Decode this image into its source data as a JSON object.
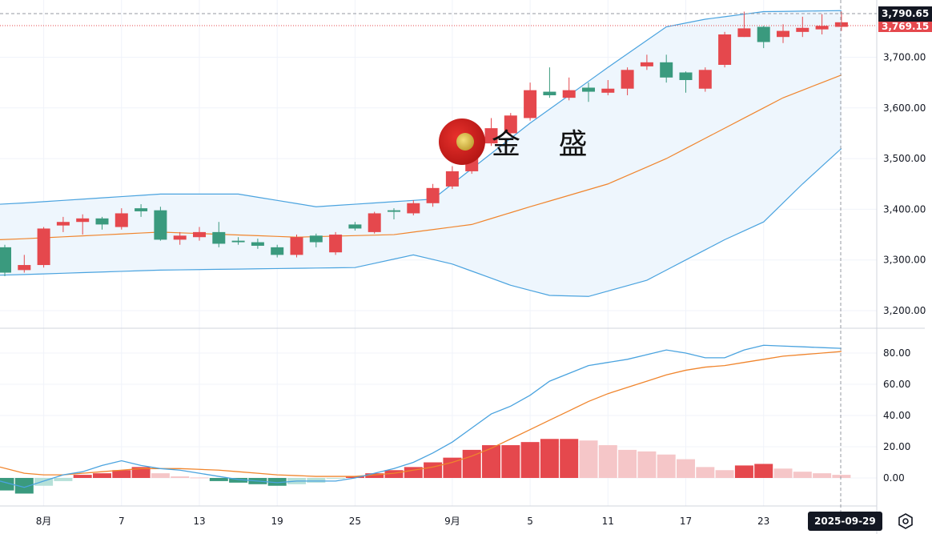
{
  "watermark": "金 盛",
  "crosshair": {
    "price_label": "3,790.65",
    "last_price_label": "3,769.15",
    "date_label": "2025-09-29"
  },
  "colors": {
    "up": "#e5484d",
    "down": "#3a9a7e",
    "up_light": "#f5c6c8",
    "down_light": "#b5e0d8",
    "band_fill": "#eef6fd",
    "upper": "#4aa3df",
    "mid": "#f0852d",
    "dif": "#4aa3df",
    "dea": "#f0852d"
  },
  "chart_data": [
    {
      "type": "candlestick",
      "title": "",
      "price_ticks": [
        3200,
        3300,
        3400,
        3500,
        3600,
        3700
      ],
      "price_tick_labels": [
        "3,200.00",
        "3,300.00",
        "3,400.00",
        "3,500.00",
        "3,600.00",
        "3,700.00"
      ],
      "ylim": [
        3165,
        3818
      ],
      "x_labels": [
        {
          "i": 2,
          "label": "8月"
        },
        {
          "i": 6,
          "label": "7"
        },
        {
          "i": 10,
          "label": "13"
        },
        {
          "i": 14,
          "label": "19"
        },
        {
          "i": 18,
          "label": "25"
        },
        {
          "i": 23,
          "label": "9月"
        },
        {
          "i": 27,
          "label": "5"
        },
        {
          "i": 31,
          "label": "11"
        },
        {
          "i": 35,
          "label": "17"
        },
        {
          "i": 39,
          "label": "23"
        }
      ],
      "ohlc": [
        [
          3325,
          3330,
          3268,
          3275
        ],
        [
          3280,
          3310,
          3275,
          3290
        ],
        [
          3290,
          3365,
          3285,
          3362
        ],
        [
          3368,
          3385,
          3355,
          3375
        ],
        [
          3375,
          3390,
          3350,
          3382
        ],
        [
          3382,
          3385,
          3360,
          3370
        ],
        [
          3365,
          3402,
          3360,
          3392
        ],
        [
          3402,
          3410,
          3385,
          3396
        ],
        [
          3398,
          3405,
          3338,
          3340
        ],
        [
          3340,
          3355,
          3330,
          3348
        ],
        [
          3345,
          3365,
          3338,
          3355
        ],
        [
          3355,
          3375,
          3325,
          3332
        ],
        [
          3338,
          3345,
          3330,
          3335
        ],
        [
          3335,
          3342,
          3322,
          3328
        ],
        [
          3325,
          3330,
          3305,
          3310
        ],
        [
          3310,
          3350,
          3305,
          3345
        ],
        [
          3348,
          3352,
          3325,
          3335
        ],
        [
          3315,
          3355,
          3310,
          3350
        ],
        [
          3370,
          3375,
          3358,
          3362
        ],
        [
          3355,
          3395,
          3352,
          3392
        ],
        [
          3398,
          3402,
          3380,
          3395
        ],
        [
          3392,
          3418,
          3388,
          3412
        ],
        [
          3412,
          3450,
          3405,
          3442
        ],
        [
          3445,
          3485,
          3440,
          3475
        ],
        [
          3475,
          3545,
          3470,
          3530
        ],
        [
          3530,
          3580,
          3525,
          3560
        ],
        [
          3550,
          3590,
          3545,
          3585
        ],
        [
          3580,
          3650,
          3575,
          3635
        ],
        [
          3632,
          3680,
          3620,
          3625
        ],
        [
          3620,
          3660,
          3615,
          3635
        ],
        [
          3640,
          3650,
          3612,
          3632
        ],
        [
          3630,
          3655,
          3625,
          3638
        ],
        [
          3638,
          3680,
          3625,
          3675
        ],
        [
          3682,
          3705,
          3675,
          3690
        ],
        [
          3690,
          3705,
          3650,
          3660
        ],
        [
          3670,
          3672,
          3630,
          3655
        ],
        [
          3638,
          3680,
          3632,
          3675
        ],
        [
          3685,
          3750,
          3680,
          3745
        ],
        [
          3740,
          3790,
          3740,
          3757
        ],
        [
          3760,
          3762,
          3718,
          3730
        ],
        [
          3740,
          3765,
          3728,
          3752
        ],
        [
          3750,
          3780,
          3740,
          3758
        ],
        [
          3755,
          3785,
          3745,
          3762
        ],
        [
          3760,
          3790,
          3752,
          3769
        ]
      ],
      "boll_upper": [
        [
          0,
          3410
        ],
        [
          8,
          3430
        ],
        [
          12,
          3430
        ],
        [
          16,
          3405
        ],
        [
          20,
          3415
        ],
        [
          22,
          3420
        ],
        [
          24,
          3480
        ],
        [
          27,
          3570
        ],
        [
          31,
          3680
        ],
        [
          34,
          3760
        ],
        [
          36,
          3775
        ],
        [
          39,
          3790
        ],
        [
          43,
          3792
        ]
      ],
      "boll_mid": [
        [
          0,
          3340
        ],
        [
          8,
          3355
        ],
        [
          15,
          3345
        ],
        [
          20,
          3350
        ],
        [
          24,
          3370
        ],
        [
          27,
          3405
        ],
        [
          31,
          3450
        ],
        [
          34,
          3500
        ],
        [
          37,
          3560
        ],
        [
          40,
          3620
        ],
        [
          43,
          3665
        ]
      ],
      "boll_lower": [
        [
          0,
          3270
        ],
        [
          8,
          3280
        ],
        [
          18,
          3285
        ],
        [
          21,
          3310
        ],
        [
          23,
          3292
        ],
        [
          26,
          3250
        ],
        [
          28,
          3230
        ],
        [
          30,
          3228
        ],
        [
          33,
          3260
        ],
        [
          35,
          3300
        ],
        [
          37,
          3340
        ],
        [
          39,
          3375
        ],
        [
          41,
          3450
        ],
        [
          43,
          3520
        ]
      ]
    },
    {
      "type": "macd",
      "ticks": [
        0,
        20,
        40,
        60,
        80
      ],
      "tick_labels": [
        "0.00",
        "20.00",
        "40.00",
        "60.00",
        "80.00"
      ],
      "ylim": [
        -18,
        92
      ],
      "hist": [
        -8,
        -10,
        -5,
        -2,
        2,
        3,
        5,
        7,
        3,
        1,
        0.3,
        -2,
        -3,
        -4,
        -5,
        -4,
        -3,
        -0.5,
        1,
        3,
        5,
        7,
        10,
        13,
        18,
        21,
        21,
        23,
        25,
        25,
        24,
        21,
        18,
        17,
        15,
        12,
        7,
        5,
        8,
        9,
        6,
        4,
        3,
        2
      ],
      "dif": [
        -2,
        -6,
        -2,
        2,
        4,
        8,
        11,
        8,
        6,
        5,
        3,
        1,
        -1,
        -2,
        -3,
        -2,
        -2,
        -2,
        0,
        3,
        6,
        10,
        16,
        23,
        32,
        41,
        46,
        53,
        62,
        67,
        72,
        74,
        76,
        79,
        82,
        80,
        77,
        77,
        82,
        85,
        84.5,
        84,
        83.5,
        83
      ],
      "dea": [
        7,
        3,
        2,
        2,
        3,
        4,
        5,
        6,
        6,
        6,
        5.5,
        5,
        4,
        3,
        2,
        1.5,
        1,
        1,
        1,
        2,
        3,
        5,
        7,
        10,
        14,
        19,
        25,
        31,
        37,
        43,
        49,
        54,
        58,
        62,
        66,
        69,
        71,
        72,
        74,
        76,
        78,
        79,
        80,
        81
      ]
    }
  ]
}
